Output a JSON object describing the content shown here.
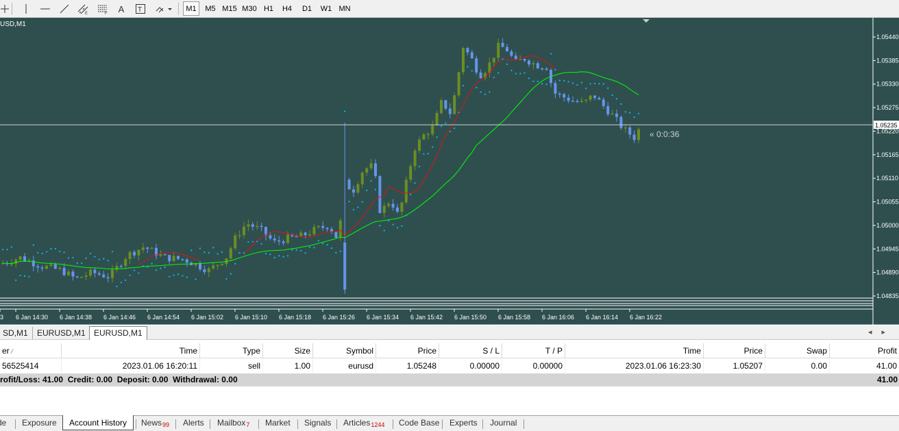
{
  "toolbar": {
    "tools": [
      {
        "name": "crosshair-icon",
        "glyph": "┼"
      },
      {
        "name": "vertical-line-icon",
        "glyph": "│"
      },
      {
        "name": "horizontal-line-icon",
        "glyph": "—"
      },
      {
        "name": "trendline-icon",
        "glyph": "╱"
      },
      {
        "name": "equidistant-channel-icon",
        "glyph": "▦"
      },
      {
        "name": "fibonacci-icon",
        "glyph": "▤"
      },
      {
        "name": "text-icon",
        "glyph": "A"
      },
      {
        "name": "text-label-icon",
        "glyph": "T"
      },
      {
        "name": "shapes-icon",
        "glyph": "⬙"
      }
    ],
    "timeframes": [
      "M1",
      "M5",
      "M15",
      "M30",
      "H1",
      "H4",
      "D1",
      "W1",
      "MN"
    ],
    "active_timeframe": "M1"
  },
  "chart": {
    "title": "USD,M1",
    "countdown": "« 0:0:36",
    "bid_price_label": "1.05235",
    "price_ticks": [
      "1.05440",
      "1.05385",
      "1.05330",
      "1.05275",
      "1.05220",
      "1.05165",
      "1.05110",
      "1.05055",
      "1.05000",
      "1.04945",
      "1.04890",
      "1.04835"
    ],
    "time_ticks": [
      "3",
      "6 Jan 14:30",
      "6 Jan 14:38",
      "6 Jan 14:46",
      "6 Jan 14:54",
      "6 Jan 15:02",
      "6 Jan 15:10",
      "6 Jan 15:18",
      "6 Jan 15:26",
      "6 Jan 15:34",
      "6 Jan 15:42",
      "6 Jan 15:50",
      "6 Jan 15:58",
      "6 Jan 16:06",
      "6 Jan 16:14",
      "6 Jan 16:22"
    ],
    "colors": {
      "background": "#2f4f4f",
      "bull": "#6b8e23",
      "bear": "#6495ed",
      "ma_green": "#00ff00",
      "ma_red": "#dc1414",
      "sar": "#00bfff",
      "text": "#ffffff"
    }
  },
  "chart_tabs": {
    "tabs": [
      "SD,M1",
      "EURUSD,M1",
      "EURUSD,M1"
    ],
    "active_index": 2
  },
  "terminal": {
    "columns": [
      "er",
      "Time",
      "Type",
      "Size",
      "Symbol",
      "Price",
      "S / L",
      "T / P",
      "Time",
      "Price",
      "Swap",
      "Profit"
    ],
    "rows": [
      [
        "56525414",
        "2023.01.06 16:20:11",
        "sell",
        "1.00",
        "eurusd",
        "1.05248",
        "0.00000",
        "0.00000",
        "2023.01.06 16:23:30",
        "1.05207",
        "0.00",
        "41.00"
      ]
    ],
    "summary": "rofit/Loss: 41.00  Credit: 0.00  Deposit: 0.00  Withdrawal: 0.00",
    "summary_total": "41.00"
  },
  "bottom_tabs": [
    {
      "label": "de",
      "badge": ""
    },
    {
      "label": "Exposure",
      "badge": ""
    },
    {
      "label": "Account History",
      "badge": ""
    },
    {
      "label": "News",
      "badge": "99"
    },
    {
      "label": "Alerts",
      "badge": ""
    },
    {
      "label": "Mailbox",
      "badge": "7"
    },
    {
      "label": "Market",
      "badge": ""
    },
    {
      "label": "Signals",
      "badge": ""
    },
    {
      "label": "Articles",
      "badge": "1244"
    },
    {
      "label": "Code Base",
      "badge": ""
    },
    {
      "label": "Experts",
      "badge": ""
    },
    {
      "label": "Journal",
      "badge": ""
    }
  ],
  "bottom_tabs_active": 2
}
